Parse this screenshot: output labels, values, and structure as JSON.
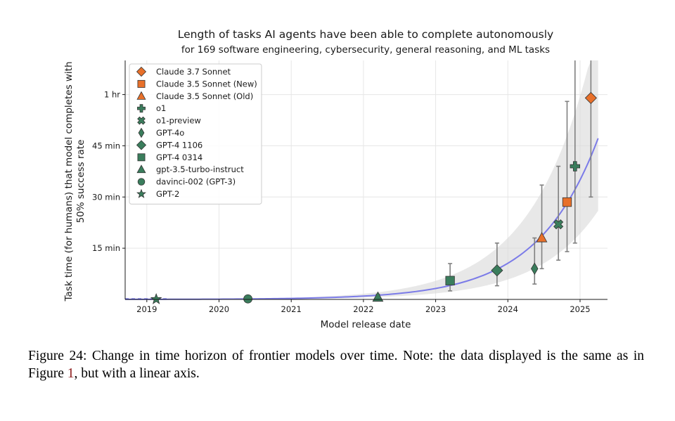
{
  "chart_data": {
    "type": "scatter",
    "title": "Length of tasks AI agents have been able to complete autonomously",
    "subtitle": "for 169 software engineering, cybersecurity, general reasoning, and ML tasks",
    "xlabel": "Model release date",
    "ylabel_line1": "Task time (for humans) that model completes with",
    "ylabel_line2": "50% success rate",
    "xlim": [
      2018.7,
      2025.38
    ],
    "ylim_minutes": [
      0,
      70
    ],
    "x_ticks": [
      {
        "value": 2019,
        "label": "2019"
      },
      {
        "value": 2020,
        "label": "2020"
      },
      {
        "value": 2021,
        "label": "2021"
      },
      {
        "value": 2022,
        "label": "2022"
      },
      {
        "value": 2023,
        "label": "2023"
      },
      {
        "value": 2024,
        "label": "2024"
      },
      {
        "value": 2025,
        "label": "2025"
      }
    ],
    "y_ticks": [
      {
        "value": 15,
        "label": "15 min"
      },
      {
        "value": 30,
        "label": "30 min"
      },
      {
        "value": 45,
        "label": "45 min"
      },
      {
        "value": 60,
        "label": "1 hr"
      }
    ],
    "grid": true,
    "legend_position": "top-left",
    "trend": {
      "type": "exponential",
      "description": "exponential fit with confidence band",
      "anchor_date": 2025.0,
      "anchor_minutes": 35,
      "doubling_years": 0.58,
      "band_low_factor": 0.55,
      "band_high_factor": 1.7,
      "color": "#7b7be8",
      "band_color": "#d9d9d9"
    },
    "series": [
      {
        "name": "Claude 3.7 Sonnet",
        "date": 2025.15,
        "minutes": 59,
        "ci": [
          30,
          70
        ],
        "marker": "diamond",
        "color": "#e8702a"
      },
      {
        "name": "Claude 3.5 Sonnet (New)",
        "date": 2024.82,
        "minutes": 28.5,
        "ci": [
          14,
          58
        ],
        "marker": "square",
        "color": "#e8702a"
      },
      {
        "name": "Claude 3.5 Sonnet (Old)",
        "date": 2024.47,
        "minutes": 18,
        "ci": [
          9,
          33.5
        ],
        "marker": "triangle",
        "color": "#e8702a"
      },
      {
        "name": "o1",
        "date": 2024.93,
        "minutes": 39,
        "ci": [
          16.5,
          70
        ],
        "marker": "plus",
        "color": "#3a7d5c"
      },
      {
        "name": "o1-preview",
        "date": 2024.7,
        "minutes": 22,
        "ci": [
          11.5,
          39
        ],
        "marker": "x",
        "color": "#3a7d5c"
      },
      {
        "name": "GPT-4o",
        "date": 2024.37,
        "minutes": 9,
        "ci": [
          4.5,
          18
        ],
        "marker": "thin-diamond",
        "color": "#3a7d5c"
      },
      {
        "name": "GPT-4 1106",
        "date": 2023.85,
        "minutes": 8.5,
        "ci": [
          4,
          16.5
        ],
        "marker": "diamond",
        "color": "#3a7d5c"
      },
      {
        "name": "GPT-4 0314",
        "date": 2023.2,
        "minutes": 5.5,
        "ci": [
          2.5,
          10.5
        ],
        "marker": "square",
        "color": "#3a7d5c"
      },
      {
        "name": "gpt-3.5-turbo-instruct",
        "date": 2022.2,
        "minutes": 0.6,
        "ci": [
          0.2,
          1.5
        ],
        "marker": "triangle",
        "color": "#3a7d5c"
      },
      {
        "name": "davinci-002 (GPT-3)",
        "date": 2020.4,
        "minutes": 0.15,
        "ci": [
          0.05,
          0.4
        ],
        "marker": "circle",
        "color": "#3a7d5c"
      },
      {
        "name": "GPT-2",
        "date": 2019.13,
        "minutes": 0.05,
        "ci": [
          0.02,
          0.1
        ],
        "marker": "star",
        "color": "#3a7d5c"
      }
    ]
  },
  "caption": {
    "prefix": "Figure 24: Change in time horizon of frontier models over time. Note: the data displayed is the same as in Figure ",
    "ref": "1",
    "suffix": ", but with a linear axis."
  }
}
